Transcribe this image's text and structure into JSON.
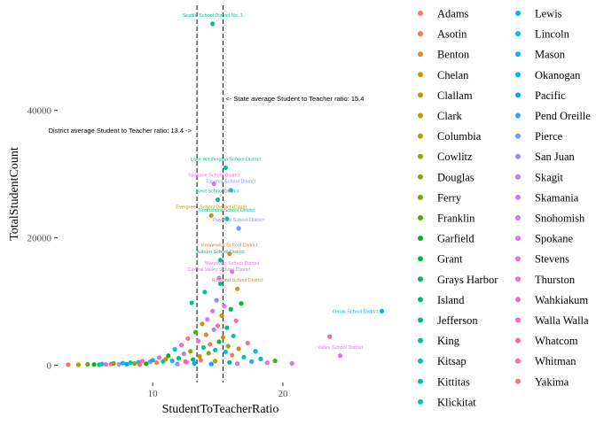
{
  "chart_data": {
    "type": "scatter",
    "title": "",
    "xlabel": "StudentToTeacherRatio",
    "ylabel": "TotalStudentCount",
    "xlim": [
      2.7,
      27.7
    ],
    "ylim": [
      -2700,
      56500
    ],
    "xticks": [
      10,
      20
    ],
    "yticks": [
      0,
      20000,
      40000
    ],
    "ytick_labels": [
      "0",
      "20000",
      "40000"
    ],
    "grid": false,
    "legend_position": "right",
    "reference_lines": [
      {
        "x": 13.4,
        "style": "dashed",
        "label": "District average Student to Teacher ratio: 13.4 ->"
      },
      {
        "x": 15.4,
        "style": "dashed",
        "label": "<- State average Student to Teacher ratio: 15.4"
      }
    ],
    "counties": [
      {
        "name": "Adams",
        "color": "#F8766D"
      },
      {
        "name": "Asotin",
        "color": "#F07F4E"
      },
      {
        "name": "Benton",
        "color": "#E6862C"
      },
      {
        "name": "Chelan",
        "color": "#D98D00"
      },
      {
        "name": "Clallam",
        "color": "#CB9300"
      },
      {
        "name": "Clark",
        "color": "#BB9A00"
      },
      {
        "name": "Columbia",
        "color": "#AAA000"
      },
      {
        "name": "Cowlitz",
        "color": "#97A500"
      },
      {
        "name": "Douglas",
        "color": "#82AA00"
      },
      {
        "name": "Ferry",
        "color": "#67AE00"
      },
      {
        "name": "Franklin",
        "color": "#43B200"
      },
      {
        "name": "Garfield",
        "color": "#00B61E"
      },
      {
        "name": "Grant",
        "color": "#00B83F"
      },
      {
        "name": "Grays Harbor",
        "color": "#00BB59"
      },
      {
        "name": "Island",
        "color": "#00BD70"
      },
      {
        "name": "Jefferson",
        "color": "#00BF84"
      },
      {
        "name": "King",
        "color": "#00C097"
      },
      {
        "name": "Kitsap",
        "color": "#00C1AA"
      },
      {
        "name": "Kittitas",
        "color": "#00C1BB"
      },
      {
        "name": "Klickitat",
        "color": "#00C0CC"
      },
      {
        "name": "Lewis",
        "color": "#00BEDB"
      },
      {
        "name": "Lincoln",
        "color": "#00BBE9"
      },
      {
        "name": "Mason",
        "color": "#00B6F5"
      },
      {
        "name": "Okanogan",
        "color": "#00B0FE"
      },
      {
        "name": "Pacific",
        "color": "#00A9FF"
      },
      {
        "name": "Pend Oreille",
        "color": "#35A0FF"
      },
      {
        "name": "Pierce",
        "color": "#6F97FF"
      },
      {
        "name": "San Juan",
        "color": "#928DFF"
      },
      {
        "name": "Skagit",
        "color": "#AC84FF"
      },
      {
        "name": "Skamania",
        "color": "#C17CFF"
      },
      {
        "name": "Snohomish",
        "color": "#D375FB"
      },
      {
        "name": "Spokane",
        "color": "#E170F3"
      },
      {
        "name": "Stevens",
        "color": "#EC6BE8"
      },
      {
        "name": "Thurston",
        "color": "#F468DB"
      },
      {
        "name": "Wahkiakum",
        "color": "#FA66CC"
      },
      {
        "name": "Walla Walla",
        "color": "#FD66BB"
      },
      {
        "name": "Whatcom",
        "color": "#FE68A9"
      },
      {
        "name": "Whitman",
        "color": "#FC6C96"
      },
      {
        "name": "Yakima",
        "color": "#F87282"
      }
    ],
    "labeled_points": [
      {
        "label": "Seattle School District No. 1",
        "x": 14.6,
        "y": 53600,
        "county": "King"
      },
      {
        "label": "Lake Washington School District",
        "x": 15.6,
        "y": 31000,
        "county": "King"
      },
      {
        "label": "Spokane School District",
        "x": 14.7,
        "y": 28500,
        "county": "Spokane"
      },
      {
        "label": "Tacoma School District",
        "x": 16.0,
        "y": 27500,
        "county": "Pierce"
      },
      {
        "label": "Kent School District",
        "x": 15.0,
        "y": 26000,
        "county": "King"
      },
      {
        "label": "Northshore School District",
        "x": 15.7,
        "y": 23000,
        "county": "King"
      },
      {
        "label": "Evergreen School District (Clark)",
        "x": 14.5,
        "y": 23500,
        "county": "Clark"
      },
      {
        "label": "Puyallup School District",
        "x": 16.6,
        "y": 21500,
        "county": "Pierce"
      },
      {
        "label": "Kennewick School District",
        "x": 15.9,
        "y": 17500,
        "county": "Benton"
      },
      {
        "label": "Auburn School District",
        "x": 15.2,
        "y": 16500,
        "county": "King"
      },
      {
        "label": "Marysville School District",
        "x": 16.1,
        "y": 14700,
        "county": "Snohomish"
      },
      {
        "label": "Central Valley School District",
        "x": 15.1,
        "y": 13700,
        "county": "Spokane"
      },
      {
        "label": "Richland School District",
        "x": 16.5,
        "y": 12000,
        "county": "Benton"
      },
      {
        "label": "Omak School District",
        "x": 27.6,
        "y": 8500,
        "county": "Okanogan"
      },
      {
        "label": "Valley School District",
        "x": 24.4,
        "y": 1500,
        "county": "Stevens"
      }
    ],
    "other_points": [
      {
        "x": 3.5,
        "y": 100,
        "county": "Adams"
      },
      {
        "x": 4.3,
        "y": 80,
        "county": "Columbia"
      },
      {
        "x": 5.0,
        "y": 150,
        "county": "Ferry"
      },
      {
        "x": 5.5,
        "y": 120,
        "county": "Garfield"
      },
      {
        "x": 5.9,
        "y": 90,
        "county": "Jefferson"
      },
      {
        "x": 6.1,
        "y": 200,
        "county": "Lincoln"
      },
      {
        "x": 6.4,
        "y": 130,
        "county": "Wahkiakum"
      },
      {
        "x": 6.8,
        "y": 220,
        "county": "Whitman"
      },
      {
        "x": 7.0,
        "y": 300,
        "county": "Ferry"
      },
      {
        "x": 7.4,
        "y": 160,
        "county": "Skamania"
      },
      {
        "x": 7.7,
        "y": 350,
        "county": "Klickitat"
      },
      {
        "x": 8.0,
        "y": 180,
        "county": "Pacific"
      },
      {
        "x": 8.3,
        "y": 420,
        "county": "Lincoln"
      },
      {
        "x": 8.6,
        "y": 280,
        "county": "Douglas"
      },
      {
        "x": 8.9,
        "y": 500,
        "county": "Pend Oreille"
      },
      {
        "x": 9.2,
        "y": 650,
        "county": "Whitman"
      },
      {
        "x": 9.5,
        "y": 240,
        "county": "Garfield"
      },
      {
        "x": 9.8,
        "y": 550,
        "county": "San Juan"
      },
      {
        "x": 10.0,
        "y": 800,
        "county": "Okanogan"
      },
      {
        "x": 10.3,
        "y": 420,
        "county": "Asotin"
      },
      {
        "x": 10.5,
        "y": 1200,
        "county": "Stevens"
      },
      {
        "x": 10.8,
        "y": 600,
        "county": "Kittitas"
      },
      {
        "x": 11.0,
        "y": 950,
        "county": "Chelan"
      },
      {
        "x": 11.2,
        "y": 1500,
        "county": "Grant"
      },
      {
        "x": 11.5,
        "y": 700,
        "county": "Mason"
      },
      {
        "x": 11.7,
        "y": 2500,
        "county": "Lewis"
      },
      {
        "x": 12.0,
        "y": 1100,
        "county": "Island"
      },
      {
        "x": 12.2,
        "y": 3200,
        "county": "Walla Walla"
      },
      {
        "x": 12.4,
        "y": 1800,
        "county": "Skagit"
      },
      {
        "x": 12.5,
        "y": 600,
        "county": "Whatcom"
      },
      {
        "x": 12.7,
        "y": 4200,
        "county": "Yakima"
      },
      {
        "x": 12.9,
        "y": 2200,
        "county": "Cowlitz"
      },
      {
        "x": 13.0,
        "y": 9800,
        "county": "King"
      },
      {
        "x": 13.1,
        "y": 900,
        "county": "Grays Harbor"
      },
      {
        "x": 13.3,
        "y": 5200,
        "county": "Franklin"
      },
      {
        "x": 13.5,
        "y": 3800,
        "county": "Thurston"
      },
      {
        "x": 13.6,
        "y": 1400,
        "county": "Clallam"
      },
      {
        "x": 13.8,
        "y": 6500,
        "county": "Clark"
      },
      {
        "x": 13.9,
        "y": 2800,
        "county": "Kitsap"
      },
      {
        "x": 14.0,
        "y": 11500,
        "county": "Kitsap"
      },
      {
        "x": 14.1,
        "y": 4800,
        "county": "Benton"
      },
      {
        "x": 14.2,
        "y": 7200,
        "county": "Snohomish"
      },
      {
        "x": 14.3,
        "y": 1900,
        "county": "Douglas"
      },
      {
        "x": 14.4,
        "y": 3300,
        "county": "Yakima"
      },
      {
        "x": 14.6,
        "y": 8500,
        "county": "Thurston"
      },
      {
        "x": 14.7,
        "y": 5600,
        "county": "Skagit"
      },
      {
        "x": 14.8,
        "y": 2400,
        "county": "Lewis"
      },
      {
        "x": 14.9,
        "y": 10200,
        "county": "Pierce"
      },
      {
        "x": 15.0,
        "y": 6200,
        "county": "Whatcom"
      },
      {
        "x": 15.1,
        "y": 3700,
        "county": "Grant"
      },
      {
        "x": 15.2,
        "y": 12800,
        "county": "King"
      },
      {
        "x": 15.3,
        "y": 7800,
        "county": "Clark"
      },
      {
        "x": 15.4,
        "y": 4400,
        "county": "Chelan"
      },
      {
        "x": 15.5,
        "y": 9300,
        "county": "Snohomish"
      },
      {
        "x": 15.6,
        "y": 2100,
        "county": "Mason"
      },
      {
        "x": 15.7,
        "y": 5900,
        "county": "Island"
      },
      {
        "x": 15.8,
        "y": 3000,
        "county": "Cowlitz"
      },
      {
        "x": 16.0,
        "y": 8800,
        "county": "Grays Harbor"
      },
      {
        "x": 16.1,
        "y": 1600,
        "county": "Asotin"
      },
      {
        "x": 16.2,
        "y": 4600,
        "county": "Kittitas"
      },
      {
        "x": 16.4,
        "y": 7000,
        "county": "Walla Walla"
      },
      {
        "x": 16.6,
        "y": 2600,
        "county": "Clallam"
      },
      {
        "x": 16.8,
        "y": 9700,
        "county": "Grant"
      },
      {
        "x": 17.0,
        "y": 1300,
        "county": "Klickitat"
      },
      {
        "x": 17.3,
        "y": 3500,
        "county": "Yakima"
      },
      {
        "x": 17.6,
        "y": 600,
        "county": "Pend Oreille"
      },
      {
        "x": 17.9,
        "y": 2200,
        "county": "Lewis"
      },
      {
        "x": 18.3,
        "y": 1000,
        "county": "Kitsap"
      },
      {
        "x": 18.8,
        "y": 400,
        "county": "Stevens"
      },
      {
        "x": 19.4,
        "y": 700,
        "county": "Franklin"
      },
      {
        "x": 20.7,
        "y": 300,
        "county": "Spokane"
      },
      {
        "x": 23.6,
        "y": 4500,
        "county": "Whitman"
      },
      {
        "x": 13.2,
        "y": 300,
        "county": "Okanogan"
      },
      {
        "x": 14.5,
        "y": 200,
        "county": "Pacific"
      },
      {
        "x": 11.9,
        "y": 200,
        "county": "San Juan"
      },
      {
        "x": 16.5,
        "y": 250,
        "county": "Skamania"
      },
      {
        "x": 9.0,
        "y": 100,
        "county": "Adams"
      },
      {
        "x": 12.6,
        "y": 500,
        "county": "Wahkiakum"
      },
      {
        "x": 15.9,
        "y": 450,
        "county": "Jefferson"
      },
      {
        "x": 13.7,
        "y": 800,
        "county": "Adams"
      },
      {
        "x": 14.8,
        "y": 650,
        "county": "Columbia"
      }
    ]
  }
}
